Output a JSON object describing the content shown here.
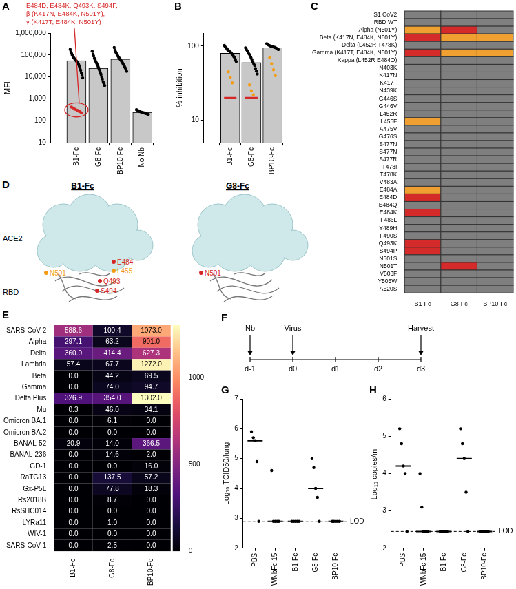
{
  "chart_data": [
    {
      "panel": "A",
      "type": "bar",
      "y_label": "MFI",
      "categories": [
        "B1-Fc",
        "G8-Fc",
        "BP10-Fc",
        "No Nb"
      ],
      "values": [
        55000,
        25000,
        65000,
        240
      ],
      "color": "#c8c8c8",
      "log": "y",
      "ylim": [
        10,
        1000000
      ],
      "yticks": [
        10,
        100,
        {
          "value": 1000,
          "label": "1,000"
        },
        {
          "value": 10000,
          "label": "10,000"
        },
        {
          "value": 100000,
          "label": "100,000"
        },
        {
          "value": 1000000,
          "label": "1,000,000"
        }
      ],
      "points": [
        {
          "category": "B1-Fc",
          "color": "#000000",
          "values": [
            180000,
            140000,
            120000,
            100000,
            90000,
            80000,
            72000,
            65000,
            60000,
            55000,
            50000,
            45000,
            40000,
            36000,
            30000,
            25000,
            20000,
            15000,
            12000,
            9000
          ]
        },
        {
          "category": "B1-Fc",
          "color": "#d62728",
          "values": [
            420,
            380,
            330,
            300,
            260,
            230
          ]
        },
        {
          "category": "G8-Fc",
          "color": "#000000",
          "values": [
            150000,
            110000,
            90000,
            70000,
            60000,
            50000,
            42000,
            36000,
            30000,
            25000,
            20000,
            16000,
            13000,
            10000,
            8000,
            6000,
            5000,
            4000
          ]
        },
        {
          "category": "BP10-Fc",
          "color": "#000000",
          "values": [
            220000,
            170000,
            140000,
            120000,
            100000,
            90000,
            80000,
            72000,
            65000,
            58000,
            52000,
            46000,
            40000,
            35000,
            30000,
            26000,
            22000,
            18000
          ]
        },
        {
          "category": "No Nb",
          "color": "#000000",
          "values": [
            320,
            290,
            270,
            255,
            245,
            235,
            225,
            215,
            205,
            195
          ]
        }
      ],
      "annotation": {
        "color": "#d62728",
        "lines": [
          "E484D, E484K, Q493K, S494P,",
          "β (K417N, E484K, N501Y),",
          "γ (K417T, E484K, N501Y)"
        ]
      }
    },
    {
      "panel": "B",
      "type": "bar",
      "y_label": "% inhibition",
      "categories": [
        "B1-Fc",
        "G8-Fc",
        "BP10-Fc"
      ],
      "values": [
        80,
        60,
        95
      ],
      "color": "#c8c8c8",
      "log": "y",
      "ylim": [
        5,
        150
      ],
      "yticks": [
        10,
        100
      ],
      "points": [
        {
          "category": "B1-Fc",
          "color": "#000000",
          "values": [
            102,
            98,
            95,
            93,
            90,
            88,
            86,
            84,
            82,
            80,
            78,
            75,
            72,
            70,
            66,
            62
          ]
        },
        {
          "category": "B1-Fc",
          "color": "#f39c12",
          "values": [
            45,
            38,
            32
          ]
        },
        {
          "category": "B1-Fc",
          "color": "#d62728",
          "marker": "line",
          "values": [
            20
          ]
        },
        {
          "category": "G8-Fc",
          "color": "#000000",
          "values": [
            95,
            90,
            86,
            82,
            78,
            74,
            70,
            66,
            62,
            58,
            55,
            50,
            46,
            42
          ]
        },
        {
          "category": "G8-Fc",
          "color": "#f39c12",
          "values": [
            30,
            25,
            22
          ]
        },
        {
          "category": "G8-Fc",
          "color": "#d62728",
          "marker": "line",
          "values": [
            20
          ]
        },
        {
          "category": "BP10-Fc",
          "color": "#000000",
          "values": [
            108,
            105,
            103,
            101,
            100,
            99,
            98,
            97,
            96,
            94,
            92,
            90
          ]
        },
        {
          "category": "BP10-Fc",
          "color": "#f39c12",
          "values": [
            70,
            58,
            48,
            40
          ]
        }
      ]
    },
    {
      "panel": "C",
      "type": "heatmap",
      "x_categories": [
        "B1-Fc",
        "G8-Fc",
        "BP10-Fc"
      ],
      "y_categories": [
        "S1 CoV2",
        "RBD WT",
        "Alpha (N501Y)",
        "Beta (K417N, E484K, N501Y)",
        "Delta (L452R T478K)",
        "Gamma (K417T, E484K, N501Y)",
        "Kappa (L452R E484Q)",
        "N403K",
        "K417N",
        "K417T",
        "N439K",
        "G446S",
        "G446V",
        "L452R",
        "L455F",
        "A475V",
        "G476S",
        "S477N",
        "S477N",
        "S477R",
        "T478I",
        "T478K",
        "V483A",
        "E484A",
        "E484D",
        "E484Q",
        "E484K",
        "F486L",
        "Y489H",
        "F490S",
        "Q493K",
        "S494P",
        "N501S",
        "N501T",
        "V503F",
        "Y505W",
        "A520S"
      ],
      "colors": [
        "#7f7f7f",
        "#f0a030",
        "#d42a2a"
      ],
      "cells": [
        [
          0,
          0,
          0
        ],
        [
          0,
          0,
          0
        ],
        [
          1,
          2,
          0
        ],
        [
          2,
          1,
          1
        ],
        [
          0,
          0,
          0
        ],
        [
          2,
          1,
          1
        ],
        [
          0,
          0,
          0
        ],
        [
          0,
          0,
          0
        ],
        [
          0,
          0,
          0
        ],
        [
          0,
          0,
          0
        ],
        [
          0,
          0,
          0
        ],
        [
          0,
          0,
          0
        ],
        [
          0,
          0,
          0
        ],
        [
          0,
          0,
          0
        ],
        [
          1,
          0,
          0
        ],
        [
          0,
          0,
          0
        ],
        [
          0,
          0,
          0
        ],
        [
          0,
          0,
          0
        ],
        [
          0,
          0,
          0
        ],
        [
          0,
          0,
          0
        ],
        [
          0,
          0,
          0
        ],
        [
          0,
          0,
          0
        ],
        [
          0,
          0,
          0
        ],
        [
          1,
          0,
          0
        ],
        [
          2,
          0,
          0
        ],
        [
          0,
          0,
          0
        ],
        [
          2,
          0,
          0
        ],
        [
          0,
          0,
          0
        ],
        [
          0,
          0,
          0
        ],
        [
          0,
          0,
          0
        ],
        [
          2,
          0,
          0
        ],
        [
          2,
          0,
          0
        ],
        [
          0,
          0,
          0
        ],
        [
          0,
          2,
          0
        ],
        [
          0,
          0,
          0
        ],
        [
          0,
          0,
          0
        ],
        [
          0,
          0,
          0
        ]
      ]
    },
    {
      "panel": "E",
      "type": "heatmap",
      "data_labels": true,
      "x_categories": [
        "B1-Fc",
        "G8-Fc",
        "BP10-Fc"
      ],
      "y_categories": [
        "SARS-CoV-2",
        "Alpha",
        "Delta",
        "Lambda",
        "Beta",
        "Gamma",
        "Delta Plus",
        "Mu",
        "Omicron BA.1",
        "Omicron BA.2",
        "BANAL-52",
        "BANAL-236",
        "GD-1",
        "RaTG13",
        "Gx-P5L",
        "Rs2018B",
        "RsSHC014",
        "LYRa11",
        "WIV-1",
        "SARS-CoV-1"
      ],
      "cells": [
        [
          588.6,
          100.4,
          1073.0
        ],
        [
          297.1,
          63.2,
          901.0
        ],
        [
          360.0,
          414.4,
          627.3
        ],
        [
          57.4,
          67.7,
          1272.0
        ],
        [
          0,
          44.2,
          69.5
        ],
        [
          0,
          74.0,
          94.7
        ],
        [
          326.9,
          354.0,
          1302.0
        ],
        [
          0.3,
          46.0,
          34.1
        ],
        [
          0,
          6.1,
          0
        ],
        [
          0,
          0,
          0
        ],
        [
          20.9,
          14.0,
          366.5
        ],
        [
          0,
          14.6,
          2.0
        ],
        [
          0,
          0,
          16.0
        ],
        [
          0,
          137.5,
          57.2
        ],
        [
          0,
          77.8,
          18.3
        ],
        [
          0,
          8.7,
          0
        ],
        [
          0,
          0,
          0
        ],
        [
          0,
          1.0,
          0
        ],
        [
          0,
          0,
          0
        ],
        [
          0,
          2.5,
          0
        ]
      ],
      "value_labels": [
        [
          "588.6",
          "100.4",
          "1073.0"
        ],
        [
          "297.1",
          "63.2",
          "901.0"
        ],
        [
          "360.0",
          "414.4",
          "627.3"
        ],
        [
          "57.4",
          "67.7",
          "1272.0"
        ],
        [
          "0.0",
          "44.2",
          "69.5"
        ],
        [
          "0.0",
          "74.0",
          "94.7"
        ],
        [
          "326.9",
          "354.0",
          "1302.0"
        ],
        [
          "0.3",
          "46.0",
          "34.1"
        ],
        [
          "0.0",
          "6.1",
          "0.0"
        ],
        [
          "0.0",
          "0.0",
          "0.0"
        ],
        [
          "20.9",
          "14.0",
          "366.5"
        ],
        [
          "0.0",
          "14.6",
          "2.0"
        ],
        [
          "0.0",
          "0.0",
          "16.0"
        ],
        [
          "0.0",
          "137.5",
          "57.2"
        ],
        [
          "0.0",
          "77.8",
          "18.3"
        ],
        [
          "0.0",
          "8.7",
          "0.0"
        ],
        [
          "0.0",
          "0.0",
          "0.0"
        ],
        [
          "0.0",
          "1.0",
          "0.0"
        ],
        [
          "0.0",
          "0.0",
          "0.0"
        ],
        [
          "0.0",
          "2.5",
          "0.0"
        ]
      ],
      "colorbar": {
        "range": [
          0,
          1302
        ],
        "ticks": [
          0,
          500,
          1000
        ]
      }
    },
    {
      "panel": "G",
      "type": "scatter",
      "y_label": "Log₁₀ TCID50/lung",
      "color": "#000000",
      "categories": [
        "PBS",
        "WNbFc 15",
        "B1-Fc",
        "G8-Fc",
        "BP10-Fc"
      ],
      "ylim": [
        2,
        7
      ],
      "yticks": [
        2,
        3,
        4,
        5,
        6,
        7
      ],
      "points": [
        {
          "category": "PBS",
          "values": [
            5.9,
            5.7,
            5.6,
            4.9,
            2.9
          ]
        },
        {
          "category": "WNbFc 15",
          "values": [
            4.6,
            2.9,
            2.9,
            2.9,
            2.9
          ]
        },
        {
          "category": "B1-Fc",
          "values": [
            2.9,
            2.9,
            2.9,
            2.9,
            2.9
          ]
        },
        {
          "category": "G8-Fc",
          "values": [
            5.0,
            4.7,
            4.0,
            3.7,
            2.9
          ]
        },
        {
          "category": "BP10-Fc",
          "values": [
            2.9,
            2.9,
            2.9,
            2.9,
            2.9
          ]
        }
      ],
      "medians": [
        5.6,
        2.9,
        2.9,
        4.0,
        2.9
      ],
      "lod": {
        "value": 2.9,
        "label": "LOD"
      }
    },
    {
      "panel": "H",
      "type": "scatter",
      "y_label": "Log₁₀ copies/ml",
      "color": "#000000",
      "categories": [
        "PBS",
        "WNbFc 15",
        "B1-Fc",
        "G8-Fc",
        "BP10-Fc"
      ],
      "ylim": [
        2,
        6
      ],
      "yticks": [
        2,
        3,
        4,
        5,
        6
      ],
      "points": [
        {
          "category": "PBS",
          "values": [
            5.2,
            4.8,
            4.2,
            4.0,
            2.45
          ]
        },
        {
          "category": "WNbFc 15",
          "values": [
            4.0,
            3.1,
            2.45,
            2.45,
            2.45
          ]
        },
        {
          "category": "B1-Fc",
          "values": [
            2.45,
            2.45,
            2.45,
            2.45,
            2.45
          ]
        },
        {
          "category": "G8-Fc",
          "values": [
            5.2,
            4.8,
            4.4,
            3.5,
            2.45
          ]
        },
        {
          "category": "BP10-Fc",
          "values": [
            2.45,
            2.45,
            2.45,
            2.45,
            2.45
          ]
        }
      ],
      "medians": [
        4.2,
        2.45,
        2.45,
        4.4,
        2.45
      ],
      "lod": {
        "value": 2.45,
        "label": "LOD"
      }
    }
  ],
  "structures": {
    "panel": "D",
    "items": [
      {
        "title": "B1-Fc",
        "receptor": "ACE2",
        "domain": "RBD",
        "residues": [
          {
            "text": "E484",
            "color": "#d62728"
          },
          {
            "text": "L455",
            "color": "#f39c12"
          },
          {
            "text": "N501",
            "color": "#f39c12"
          },
          {
            "text": "Q493",
            "color": "#d62728"
          },
          {
            "text": "S494",
            "color": "#d62728"
          }
        ]
      },
      {
        "title": "G8-Fc",
        "residues": [
          {
            "text": "N501",
            "color": "#d62728"
          }
        ]
      }
    ]
  },
  "timeline": {
    "panel": "F",
    "ticks": [
      "d-1",
      "d0",
      "d1",
      "d2",
      "d3"
    ],
    "events": [
      {
        "label": "Nb",
        "at": "d-1"
      },
      {
        "label": "Virus",
        "at": "d0"
      },
      {
        "label": "Harvest",
        "at": "d3"
      }
    ]
  }
}
